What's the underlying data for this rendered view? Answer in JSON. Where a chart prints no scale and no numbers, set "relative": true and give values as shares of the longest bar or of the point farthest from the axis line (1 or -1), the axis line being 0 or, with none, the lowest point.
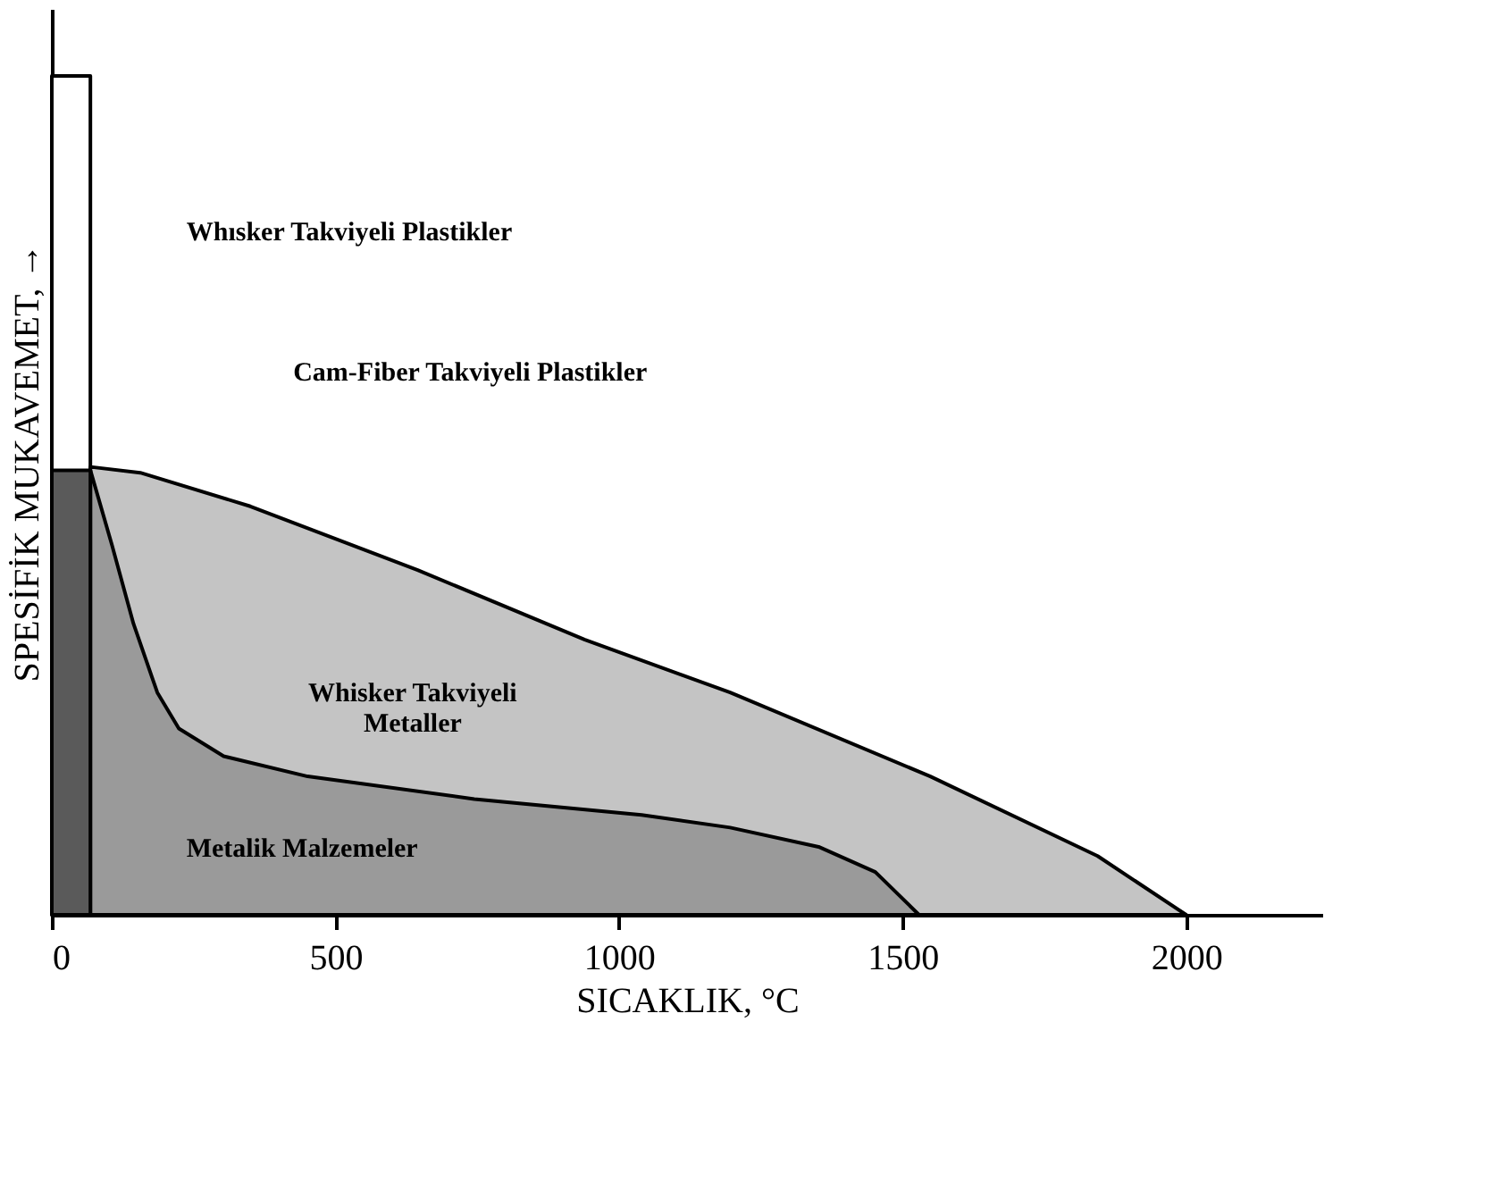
{
  "chart_data": {
    "type": "area",
    "relative": true,
    "xlabel": "SICAKLIK, °C",
    "ylabel": "SPESİFİK MUKAVEMET, →",
    "xlim": [
      0,
      2240
    ],
    "xticks": [
      0,
      500,
      1000,
      1500,
      2000
    ],
    "grid": false,
    "series": [
      {
        "color": "#ffffff",
        "x": [
          0,
          68
        ],
        "values": [
          1,
          1
        ]
      },
      {
        "color": "#c4c4c4",
        "x": [
          68,
          156,
          350,
          645,
          940,
          1196,
          1549,
          1844,
          2000
        ],
        "values": [
          0.534,
          0.527,
          0.487,
          0.411,
          0.328,
          0.265,
          0.165,
          0.07,
          0
        ]
      },
      {
        "color": "#9a9a9a",
        "x": [
          68,
          106,
          144,
          186,
          224,
          303,
          451,
          745,
          1040,
          1196,
          1352,
          1452,
          1529
        ],
        "values": [
          0.53,
          0.441,
          0.347,
          0.265,
          0.222,
          0.189,
          0.165,
          0.138,
          0.119,
          0.104,
          0.081,
          0.051,
          0
        ]
      },
      {
        "color": "#5a5a5a",
        "x": [
          0,
          68
        ],
        "values": [
          0.53,
          0.53
        ]
      }
    ],
    "annotations": [
      "Whısker Takviyeli Plastikler",
      "Cam-Fiber Takviyeli Plastikler",
      "Whisker Takviyeli\nMetaller",
      "Metalik Malzemeler"
    ]
  }
}
